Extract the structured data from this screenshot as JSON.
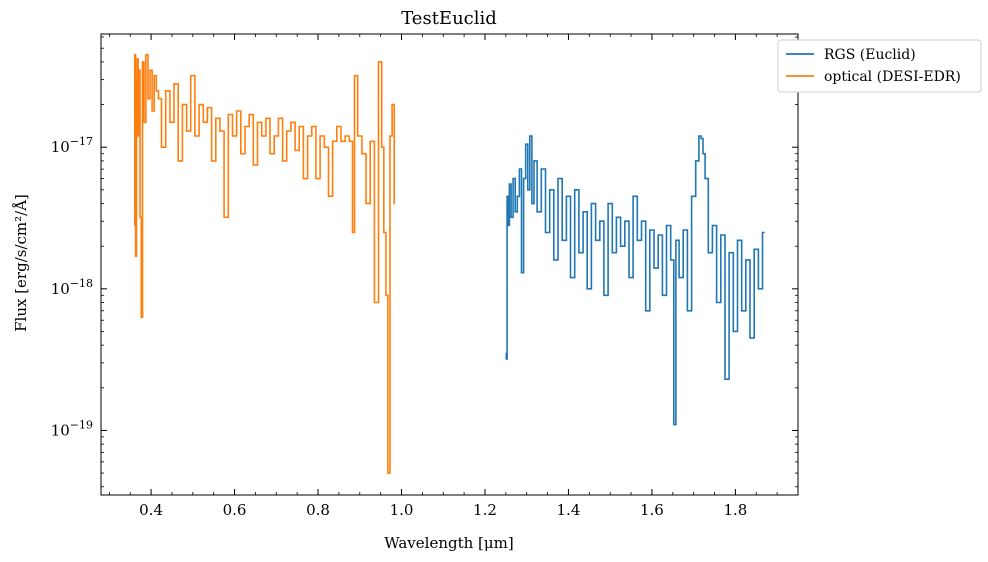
{
  "chart_data": {
    "type": "line",
    "title": "TestEuclid",
    "xlabel": "Wavelength [μm]",
    "ylabel": "Flux [erg/s/cm²/Å]",
    "xlim": [
      0.28,
      1.95
    ],
    "ylim": [
      3.5e-20,
      6.3e-17
    ],
    "yscale": "log",
    "grid": false,
    "legend_position": "upper right, outside the axes",
    "x_ticks": [
      0.4,
      0.6,
      0.8,
      1.0,
      1.2,
      1.4,
      1.6,
      1.8
    ],
    "x_tick_labels": [
      "0.4",
      "0.6",
      "0.8",
      "1.0",
      "1.2",
      "1.4",
      "1.6",
      "1.8"
    ],
    "y_ticks": [
      1e-19,
      1e-18,
      1e-17
    ],
    "y_tick_labels": [
      "10−19",
      "10−18",
      "10−17"
    ],
    "series": [
      {
        "name": "RGS (Euclid)",
        "color": "#1f77b4",
        "x": [
          1.25,
          1.252,
          1.254,
          1.257,
          1.26,
          1.265,
          1.27,
          1.275,
          1.28,
          1.285,
          1.29,
          1.295,
          1.3,
          1.305,
          1.31,
          1.315,
          1.32,
          1.33,
          1.34,
          1.35,
          1.36,
          1.37,
          1.38,
          1.39,
          1.4,
          1.41,
          1.42,
          1.43,
          1.44,
          1.45,
          1.46,
          1.47,
          1.48,
          1.49,
          1.5,
          1.51,
          1.52,
          1.53,
          1.54,
          1.55,
          1.56,
          1.57,
          1.58,
          1.59,
          1.6,
          1.61,
          1.62,
          1.63,
          1.64,
          1.65,
          1.655,
          1.66,
          1.67,
          1.68,
          1.69,
          1.7,
          1.71,
          1.715,
          1.72,
          1.725,
          1.73,
          1.74,
          1.75,
          1.76,
          1.77,
          1.78,
          1.79,
          1.8,
          1.81,
          1.82,
          1.83,
          1.84,
          1.85,
          1.86,
          1.87
        ],
        "y": [
          3.5e-19,
          3.2e-19,
          4.5e-18,
          2.8e-18,
          5.5e-18,
          3.2e-18,
          6e-18,
          3.5e-18,
          4.5e-18,
          7e-18,
          1.3e-18,
          6e-18,
          1.05e-17,
          5e-18,
          1.2e-17,
          4e-18,
          8e-18,
          3.5e-18,
          7e-18,
          2.5e-18,
          5e-18,
          1.6e-18,
          6e-18,
          2.2e-18,
          4.5e-18,
          1.2e-18,
          5e-18,
          1.8e-18,
          3.5e-18,
          1e-18,
          4e-18,
          2.2e-18,
          3e-18,
          9e-19,
          4e-18,
          1.8e-18,
          3.2e-18,
          2e-18,
          3e-18,
          1.2e-18,
          4.5e-18,
          2.2e-18,
          3e-18,
          7e-19,
          2.6e-18,
          1.4e-18,
          2.4e-18,
          9e-19,
          2.8e-18,
          1.6e-18,
          1.1e-19,
          2.2e-18,
          1.2e-18,
          2.6e-18,
          7e-19,
          4.5e-18,
          8e-18,
          1.2e-17,
          1.15e-17,
          9e-18,
          6e-18,
          1.8e-18,
          2.8e-18,
          8e-19,
          2.4e-18,
          2.3e-19,
          1.8e-18,
          5e-19,
          2.2e-18,
          7e-19,
          1.6e-18,
          4.5e-19,
          1.9e-18,
          1e-18,
          2.5e-18
        ]
      },
      {
        "name": "optical (DESI-EDR)",
        "color": "#ff7f0e",
        "x": [
          0.36,
          0.362,
          0.364,
          0.366,
          0.368,
          0.37,
          0.372,
          0.375,
          0.378,
          0.381,
          0.385,
          0.39,
          0.395,
          0.4,
          0.405,
          0.41,
          0.415,
          0.42,
          0.43,
          0.44,
          0.45,
          0.46,
          0.47,
          0.48,
          0.49,
          0.5,
          0.51,
          0.52,
          0.53,
          0.54,
          0.55,
          0.56,
          0.57,
          0.58,
          0.59,
          0.6,
          0.61,
          0.62,
          0.63,
          0.64,
          0.65,
          0.66,
          0.67,
          0.68,
          0.69,
          0.7,
          0.71,
          0.72,
          0.73,
          0.74,
          0.75,
          0.76,
          0.77,
          0.78,
          0.79,
          0.8,
          0.81,
          0.82,
          0.83,
          0.84,
          0.85,
          0.86,
          0.87,
          0.88,
          0.885,
          0.89,
          0.9,
          0.91,
          0.92,
          0.93,
          0.94,
          0.95,
          0.955,
          0.96,
          0.965,
          0.97,
          0.975,
          0.98,
          0.985
        ],
        "y": [
          2.8e-18,
          4.5e-17,
          1.7e-18,
          3e-17,
          4.2e-17,
          1.2e-17,
          3.5e-17,
          3.2e-18,
          6.3e-19,
          4e-17,
          1.5e-17,
          4.5e-17,
          2.2e-17,
          3.5e-17,
          1.8e-17,
          3.2e-17,
          2.5e-17,
          2.2e-17,
          1e-17,
          2.5e-17,
          1.5e-17,
          2.8e-17,
          8e-18,
          2e-17,
          1.3e-17,
          3.2e-17,
          1.2e-17,
          2e-17,
          1.5e-17,
          1.9e-17,
          8e-18,
          1.6e-17,
          1.3e-17,
          3.2e-18,
          1.7e-17,
          1.2e-17,
          1.8e-17,
          9e-18,
          1.4e-17,
          1.7e-17,
          7.5e-18,
          1.5e-17,
          1.2e-17,
          1.6e-17,
          9e-18,
          1.2e-17,
          1.6e-17,
          8e-18,
          1.3e-17,
          1.5e-17,
          9.5e-18,
          1.4e-17,
          6e-18,
          1.2e-17,
          1.4e-17,
          6e-18,
          1.2e-17,
          1e-17,
          4.5e-18,
          1.1e-17,
          1.4e-17,
          1.1e-17,
          1.2e-17,
          1.1e-17,
          2.5e-18,
          3.2e-17,
          1.2e-17,
          9e-18,
          4e-18,
          1.1e-17,
          8e-19,
          4e-17,
          1e-17,
          2.5e-18,
          9e-19,
          5e-20,
          1.2e-17,
          2e-17,
          4e-18
        ]
      }
    ]
  }
}
